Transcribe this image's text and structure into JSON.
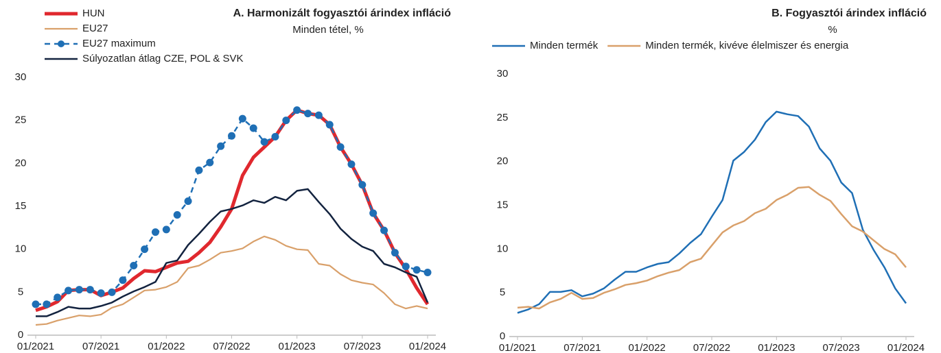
{
  "chart_data": [
    {
      "type": "line",
      "title": "A. Harmonizált fogyasztói árindex infláció",
      "subtitle": "Minden tétel, %",
      "legend": "upper left",
      "categories": [
        "01/2021",
        null,
        null,
        null,
        null,
        null,
        "07/2021",
        null,
        null,
        null,
        null,
        null,
        "01/2022",
        null,
        null,
        null,
        null,
        null,
        "07/2022",
        null,
        null,
        null,
        null,
        null,
        "01/2023",
        null,
        null,
        null,
        null,
        null,
        "07/2023",
        null,
        null,
        null,
        null,
        null,
        "01/2024"
      ],
      "ylim": [
        0,
        30
      ],
      "yticks": [
        0,
        5,
        10,
        15,
        20,
        25,
        30
      ],
      "series": [
        {
          "name": "HUN",
          "color": "#e0282e",
          "width": 5,
          "values": [
            2.9,
            3.3,
            3.9,
            5.2,
            5.3,
            5.3,
            4.6,
            5.0,
            5.5,
            6.6,
            7.5,
            7.4,
            7.9,
            8.4,
            8.6,
            9.6,
            10.8,
            12.6,
            14.7,
            18.6,
            20.7,
            21.9,
            23.1,
            25.0,
            26.2,
            25.8,
            25.6,
            24.5,
            21.9,
            19.9,
            17.5,
            14.2,
            12.2,
            9.6,
            7.7,
            5.5,
            3.6
          ]
        },
        {
          "name": "EU27",
          "color": "#d9a06a",
          "width": 2.2,
          "values": [
            1.2,
            1.3,
            1.7,
            2.0,
            2.3,
            2.2,
            2.4,
            3.2,
            3.6,
            4.4,
            5.2,
            5.3,
            5.6,
            6.2,
            7.8,
            8.1,
            8.8,
            9.6,
            9.8,
            10.1,
            10.9,
            11.5,
            11.1,
            10.4,
            10.0,
            9.9,
            8.3,
            8.1,
            7.1,
            6.4,
            6.1,
            5.9,
            4.9,
            3.6,
            3.1,
            3.4,
            3.1
          ]
        },
        {
          "name": "EU27 maximum",
          "color": "#1f6fb5",
          "width": 2.5,
          "dashed": true,
          "marker": true,
          "values": [
            3.6,
            3.6,
            4.4,
            5.2,
            5.3,
            5.3,
            4.9,
            5.0,
            6.4,
            8.1,
            10.0,
            12.0,
            12.3,
            14.0,
            15.6,
            19.2,
            20.1,
            22.0,
            23.2,
            25.2,
            24.1,
            22.5,
            23.1,
            25.0,
            26.2,
            25.8,
            25.6,
            24.5,
            21.9,
            19.9,
            17.5,
            14.2,
            12.2,
            9.6,
            8.0,
            7.6,
            7.3
          ]
        },
        {
          "name": "Súlyozatlan átlag CZE, POL & SVK",
          "color": "#13233f",
          "width": 2.5,
          "values": [
            2.2,
            2.2,
            2.7,
            3.3,
            3.1,
            3.1,
            3.4,
            3.8,
            4.5,
            5.1,
            5.6,
            6.2,
            8.4,
            8.7,
            10.5,
            11.8,
            13.2,
            14.4,
            14.7,
            15.1,
            15.7,
            15.4,
            16.1,
            15.7,
            16.8,
            17.0,
            15.5,
            14.1,
            12.4,
            11.2,
            10.3,
            9.8,
            8.3,
            7.9,
            7.3,
            6.8,
            3.8
          ]
        }
      ]
    },
    {
      "type": "line",
      "title": "B. Fogyasztói árindex infláció",
      "subtitle": "%",
      "legend": "top",
      "categories": [
        "01/2021",
        null,
        null,
        null,
        null,
        null,
        "07/2021",
        null,
        null,
        null,
        null,
        null,
        "01/2022",
        null,
        null,
        null,
        null,
        null,
        "07/2022",
        null,
        null,
        null,
        null,
        null,
        "01/2023",
        null,
        null,
        null,
        null,
        null,
        "07/2023",
        null,
        null,
        null,
        null,
        null,
        "01/2024"
      ],
      "ylim": [
        0,
        30
      ],
      "yticks": [
        0,
        5,
        10,
        15,
        20,
        25,
        30
      ],
      "series": [
        {
          "name": "Minden termék",
          "color": "#1f6fb5",
          "width": 2.5,
          "values": [
            2.7,
            3.1,
            3.7,
            5.1,
            5.1,
            5.3,
            4.6,
            4.9,
            5.5,
            6.5,
            7.4,
            7.4,
            7.9,
            8.3,
            8.5,
            9.5,
            10.7,
            11.7,
            13.7,
            15.6,
            20.1,
            21.1,
            22.5,
            24.5,
            25.7,
            25.4,
            25.2,
            24.0,
            21.5,
            20.1,
            17.6,
            16.4,
            12.2,
            9.9,
            7.9,
            5.5,
            3.8
          ]
        },
        {
          "name": "Minden termék, kivéve élelmiszer és energia",
          "color": "#d9a06a",
          "width": 2.5,
          "values": [
            3.3,
            3.4,
            3.2,
            3.9,
            4.3,
            5.0,
            4.3,
            4.4,
            5.0,
            5.4,
            5.9,
            6.1,
            6.4,
            6.9,
            7.3,
            7.6,
            8.5,
            8.9,
            10.4,
            11.9,
            12.7,
            13.2,
            14.1,
            14.6,
            15.6,
            16.2,
            17.0,
            17.1,
            16.2,
            15.5,
            14.0,
            12.6,
            12.0,
            11.0,
            10.0,
            9.4,
            7.9
          ]
        }
      ]
    }
  ]
}
